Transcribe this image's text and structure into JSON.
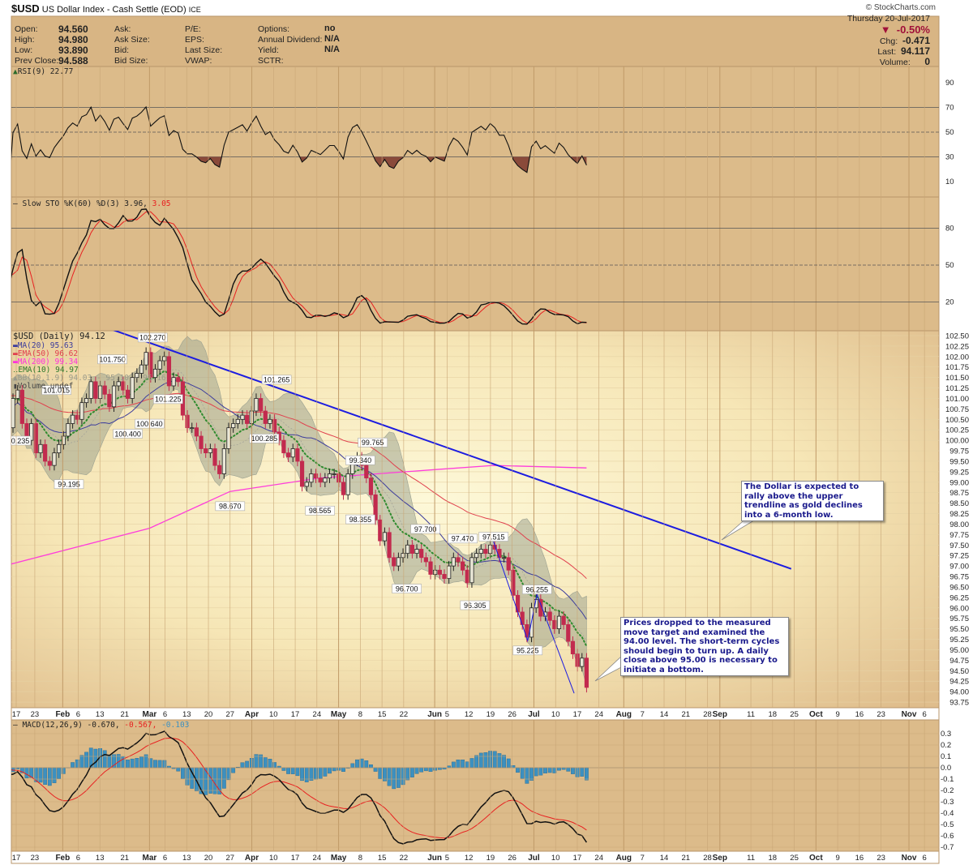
{
  "title": {
    "symbol": "$USD",
    "name": "US Dollar Index - Cash Settle (EOD)",
    "exchange": "ICE",
    "copyright": "© StockCharts.com"
  },
  "quote": {
    "rows": [
      [
        {
          "label": "Open:",
          "value": "94.560"
        },
        {
          "label": "Ask:",
          "value": ""
        },
        {
          "label": "P/E:",
          "value": ""
        },
        {
          "label": "Options:",
          "value": "no"
        }
      ],
      [
        {
          "label": "High:",
          "value": "94.980"
        },
        {
          "label": "Ask Size:",
          "value": ""
        },
        {
          "label": "EPS:",
          "value": ""
        },
        {
          "label": "Annual Dividend:",
          "value": "N/A"
        }
      ],
      [
        {
          "label": "Low:",
          "value": "93.890"
        },
        {
          "label": "Bid:",
          "value": ""
        },
        {
          "label": "Last Size:",
          "value": ""
        },
        {
          "label": "Yield:",
          "value": "N/A"
        }
      ],
      [
        {
          "label": "Prev Close:",
          "value": "94.588"
        },
        {
          "label": "Bid Size:",
          "value": ""
        },
        {
          "label": "VWAP:",
          "value": ""
        },
        {
          "label": "SCTR:",
          "value": ""
        }
      ]
    ],
    "date": "Thursday  20-Jul-2017",
    "change_pct": "-0.50%",
    "change_arrow": "▼",
    "chg_label": "Chg:",
    "chg": "-0.471",
    "last_label": "Last:",
    "last": "94.117",
    "volume_label": "Volume:",
    "volume": "0",
    "down_color": "#a0103a"
  },
  "legends": {
    "rsi": "RSI(9) 22.77",
    "sto_main": "Slow STO %K(60) %D(3) 3.96,",
    "sto_d": "3.05",
    "price": "$USD (Daily) 94.12",
    "ma20": "MA(20) 95.63",
    "ema50": "EMA(50) 96.62",
    "ma200": "MA(200) 99.34",
    "ema10": "EMA(10) 94.97",
    "bb": "BB(10,1.9) 94.03 - 95.10 - 96.16",
    "volume": "Volume undef",
    "macd_main": "MACD(12,26,9) -0.670,",
    "macd_signal": "-0.567,",
    "macd_hist": "-0.103"
  },
  "annotations": [
    {
      "text": "The Dollar is expected to rally above the upper trendline as gold declines into a 6-month low."
    },
    {
      "text": "Prices dropped to the measured move target and examined the 94.00 level. The short-term cycles should begin to turn up. A daily close above 95.00 is necessary to initiate a bottom."
    }
  ],
  "chart_data": {
    "type": "candlestick",
    "colors": {
      "up": "#e9e6d6",
      "down": "#c22a4e",
      "ma20": "#3c3c9c",
      "ema50": "#e0404e",
      "ma200": "#ff3cdc",
      "ema10": "#2e8b2e",
      "bb": "#8c9484",
      "trendline": "#1c1ce0",
      "macd_hist": "#3c90c0",
      "signal": "#e82020"
    },
    "x_axis": {
      "ticks": [
        {
          "date": "2017-01-17",
          "label": "17",
          "bold": false
        },
        {
          "date": "2017-01-23",
          "label": "23",
          "bold": false
        },
        {
          "date": "2017-02-01",
          "label": "Feb",
          "bold": true
        },
        {
          "date": "2017-02-06",
          "label": "6",
          "bold": false
        },
        {
          "date": "2017-02-13",
          "label": "13",
          "bold": false
        },
        {
          "date": "2017-02-21",
          "label": "21",
          "bold": false
        },
        {
          "date": "2017-03-01",
          "label": "Mar",
          "bold": true
        },
        {
          "date": "2017-03-06",
          "label": "6",
          "bold": false
        },
        {
          "date": "2017-03-13",
          "label": "13",
          "bold": false
        },
        {
          "date": "2017-03-20",
          "label": "20",
          "bold": false
        },
        {
          "date": "2017-03-27",
          "label": "27",
          "bold": false
        },
        {
          "date": "2017-04-03",
          "label": "Apr",
          "bold": true
        },
        {
          "date": "2017-04-10",
          "label": "10",
          "bold": false
        },
        {
          "date": "2017-04-17",
          "label": "17",
          "bold": false
        },
        {
          "date": "2017-04-24",
          "label": "24",
          "bold": false
        },
        {
          "date": "2017-05-01",
          "label": "May",
          "bold": true
        },
        {
          "date": "2017-05-08",
          "label": "8",
          "bold": false
        },
        {
          "date": "2017-05-15",
          "label": "15",
          "bold": false
        },
        {
          "date": "2017-05-22",
          "label": "22",
          "bold": false
        },
        {
          "date": "2017-06-01",
          "label": "Jun",
          "bold": true
        },
        {
          "date": "2017-06-05",
          "label": "5",
          "bold": false
        },
        {
          "date": "2017-06-12",
          "label": "12",
          "bold": false
        },
        {
          "date": "2017-06-19",
          "label": "19",
          "bold": false
        },
        {
          "date": "2017-06-26",
          "label": "26",
          "bold": false
        },
        {
          "date": "2017-07-03",
          "label": "Jul",
          "bold": true
        },
        {
          "date": "2017-07-10",
          "label": "10",
          "bold": false
        },
        {
          "date": "2017-07-17",
          "label": "17",
          "bold": false
        },
        {
          "date": "2017-07-24",
          "label": "24",
          "bold": false
        },
        {
          "date": "2017-08-01",
          "label": "Aug",
          "bold": true
        },
        {
          "date": "2017-08-07",
          "label": "7",
          "bold": false
        },
        {
          "date": "2017-08-14",
          "label": "14",
          "bold": false
        },
        {
          "date": "2017-08-21",
          "label": "21",
          "bold": false
        },
        {
          "date": "2017-08-28",
          "label": "28",
          "bold": false
        },
        {
          "date": "2017-09-01",
          "label": "Sep",
          "bold": true
        },
        {
          "date": "2017-09-11",
          "label": "11",
          "bold": false
        },
        {
          "date": "2017-09-18",
          "label": "18",
          "bold": false
        },
        {
          "date": "2017-09-25",
          "label": "25",
          "bold": false
        },
        {
          "date": "2017-10-02",
          "label": "Oct",
          "bold": true
        },
        {
          "date": "2017-10-09",
          "label": "9",
          "bold": false
        },
        {
          "date": "2017-10-16",
          "label": "16",
          "bold": false
        },
        {
          "date": "2017-10-23",
          "label": "23",
          "bold": false
        },
        {
          "date": "2017-11-01",
          "label": "Nov",
          "bold": true
        },
        {
          "date": "2017-11-06",
          "label": "6",
          "bold": false
        }
      ],
      "range": [
        "2017-01-17",
        "2017-11-06"
      ]
    },
    "price": {
      "first_date": "2017-01-13",
      "last_date": "2017-07-20",
      "ylim": [
        93.75,
        102.5
      ],
      "tick_step": 0.25,
      "closes": [
        101.1,
        100.3,
        101.0,
        101.2,
        100.4,
        100.0,
        100.4,
        99.7,
        99.9,
        99.5,
        99.4,
        99.7,
        99.9,
        100.1,
        100.4,
        100.6,
        100.5,
        100.9,
        101.0,
        101.4,
        101.0,
        101.3,
        101.1,
        100.8,
        101.3,
        101.4,
        101.2,
        101.0,
        101.5,
        101.6,
        101.8,
        102.1,
        101.5,
        101.7,
        101.9,
        102.0,
        101.3,
        101.5,
        101.4,
        100.6,
        100.3,
        100.3,
        100.1,
        99.8,
        99.7,
        99.8,
        99.4,
        99.2,
        99.8,
        100.3,
        100.4,
        100.5,
        100.6,
        100.4,
        100.7,
        101.0,
        100.7,
        100.4,
        100.5,
        100.2,
        100.0,
        99.7,
        99.6,
        99.8,
        99.5,
        98.9,
        99.0,
        99.2,
        99.1,
        99.0,
        99.1,
        99.2,
        99.2,
        99.0,
        98.7,
        99.2,
        99.5,
        99.6,
        99.4,
        99.1,
        98.7,
        98.1,
        97.6,
        97.8,
        97.2,
        97.0,
        97.2,
        97.3,
        97.5,
        97.3,
        97.4,
        97.2,
        97.1,
        96.8,
        96.9,
        96.8,
        96.7,
        97.0,
        97.2,
        97.1,
        96.9,
        96.6,
        97.2,
        97.3,
        97.4,
        97.3,
        97.5,
        97.4,
        97.2,
        97.2,
        96.9,
        96.3,
        95.9,
        95.6,
        95.3,
        96.0,
        96.2,
        95.8,
        95.9,
        95.7,
        95.5,
        95.8,
        95.6,
        95.2,
        94.9,
        94.6,
        94.8,
        94.1
      ],
      "ma200": [
        [
          "2017-01-13",
          97.0
        ],
        [
          "2017-03-01",
          97.9
        ],
        [
          "2017-03-27",
          98.78
        ],
        [
          "2017-04-25",
          99.1
        ],
        [
          "2017-06-01",
          99.3
        ],
        [
          "2017-06-20",
          99.4
        ],
        [
          "2017-07-20",
          99.34
        ]
      ],
      "pivots": [
        {
          "label": "101.015",
          "date": "2017-01-30",
          "price": 101.015,
          "pos": "above"
        },
        {
          "label": "100.235",
          "date": "2017-01-17",
          "price": 100.235,
          "pos": "below"
        },
        {
          "label": "99.195",
          "date": "2017-02-03",
          "price": 99.195,
          "pos": "below"
        },
        {
          "label": "101.750",
          "date": "2017-02-17",
          "price": 101.75,
          "pos": "above"
        },
        {
          "label": "102.270",
          "date": "2017-03-02",
          "price": 102.27,
          "pos": "above"
        },
        {
          "label": "100.400",
          "date": "2017-02-22",
          "price": 100.4,
          "pos": "below"
        },
        {
          "label": "100.640",
          "date": "2017-03-01",
          "price": 100.64,
          "pos": "below"
        },
        {
          "label": "101.225",
          "date": "2017-03-07",
          "price": 101.225,
          "pos": "below"
        },
        {
          "label": "98.670",
          "date": "2017-03-27",
          "price": 98.67,
          "pos": "below"
        },
        {
          "label": "101.265",
          "date": "2017-04-11",
          "price": 101.265,
          "pos": "above"
        },
        {
          "label": "100.285",
          "date": "2017-04-07",
          "price": 100.285,
          "pos": "below"
        },
        {
          "label": "98.565",
          "date": "2017-04-25",
          "price": 98.565,
          "pos": "below"
        },
        {
          "label": "99.340",
          "date": "2017-05-08",
          "price": 99.34,
          "pos": "above"
        },
        {
          "label": "98.355",
          "date": "2017-05-08",
          "price": 98.355,
          "pos": "below"
        },
        {
          "label": "99.765",
          "date": "2017-05-12",
          "price": 99.765,
          "pos": "above"
        },
        {
          "label": "97.700",
          "date": "2017-05-29",
          "price": 97.7,
          "pos": "above"
        },
        {
          "label": "96.700",
          "date": "2017-05-23",
          "price": 96.7,
          "pos": "below"
        },
        {
          "label": "97.470",
          "date": "2017-06-10",
          "price": 97.47,
          "pos": "above"
        },
        {
          "label": "96.305",
          "date": "2017-06-14",
          "price": 96.305,
          "pos": "below"
        },
        {
          "label": "97.515",
          "date": "2017-06-20",
          "price": 97.515,
          "pos": "above"
        },
        {
          "label": "96.255",
          "date": "2017-07-04",
          "price": 96.255,
          "pos": "above"
        },
        {
          "label": "95.225",
          "date": "2017-07-01",
          "price": 95.225,
          "pos": "below"
        }
      ],
      "trendline": [
        [
          "2017-01-12",
          103.58
        ],
        [
          "2017-09-24",
          96.93
        ]
      ],
      "measured_move": [
        [
          "2017-06-20",
          97.58
        ],
        [
          "2017-07-01",
          95.22
        ],
        [
          "2017-07-04",
          96.32
        ],
        [
          "2017-07-16",
          93.96
        ]
      ]
    },
    "rsi": {
      "period": 9,
      "ticks": [
        90,
        70,
        50,
        30,
        10
      ],
      "levels": [
        70,
        50,
        30
      ]
    },
    "stochastic": {
      "k": 60,
      "d": 3,
      "ticks": [
        80,
        50,
        20
      ]
    },
    "macd": {
      "fast": 12,
      "slow": 26,
      "signal": 9,
      "ticks": [
        0.3,
        0.2,
        0.1,
        0.0,
        -0.1,
        -0.2,
        -0.3,
        -0.4,
        -0.5,
        -0.6,
        -0.7
      ]
    }
  }
}
